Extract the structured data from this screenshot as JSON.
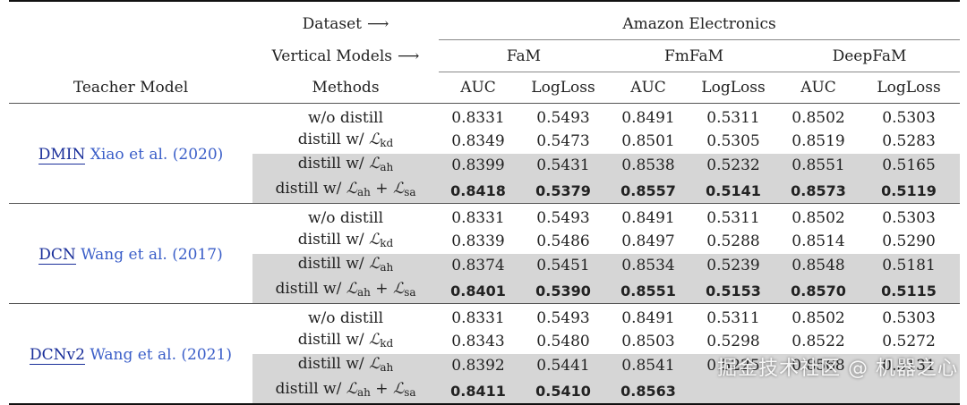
{
  "header": {
    "dataset_label": "Dataset",
    "dataset_arrow": "⟶",
    "dataset_value": "Amazon Electronics",
    "vertical_label": "Vertical Models",
    "vertical_arrow": "⟶",
    "models": [
      "FaM",
      "FmFaM",
      "DeepFaM"
    ],
    "teacher_label": "Teacher Model",
    "methods_label": "Methods",
    "metric_auc": "AUC",
    "metric_logloss": "LogLoss"
  },
  "methods": {
    "wo": "w/o distill",
    "kd_prefix": "distill w/ ",
    "kd_sub": "kd",
    "ah_prefix": "distill w/ ",
    "ah_sub": "ah",
    "sa_prefix": "distill w/ ",
    "sa_sub1": "ah",
    "sa_plus": " + ",
    "sa_sub2": "sa",
    "L": "ℒ"
  },
  "groups": [
    {
      "teacher": "DMIN",
      "citation": "Xiao et al. (2020)",
      "rows": [
        [
          "0.8331",
          "0.5493",
          "0.8491",
          "0.5311",
          "0.8502",
          "0.5303"
        ],
        [
          "0.8349",
          "0.5473",
          "0.8501",
          "0.5305",
          "0.8519",
          "0.5283"
        ],
        [
          "0.8399",
          "0.5431",
          "0.8538",
          "0.5232",
          "0.8551",
          "0.5165"
        ],
        [
          "0.8418",
          "0.5379",
          "0.8557",
          "0.5141",
          "0.8573",
          "0.5119"
        ]
      ]
    },
    {
      "teacher": "DCN",
      "citation": "Wang et al. (2017)",
      "rows": [
        [
          "0.8331",
          "0.5493",
          "0.8491",
          "0.5311",
          "0.8502",
          "0.5303"
        ],
        [
          "0.8339",
          "0.5486",
          "0.8497",
          "0.5288",
          "0.8514",
          "0.5290"
        ],
        [
          "0.8374",
          "0.5451",
          "0.8534",
          "0.5239",
          "0.8548",
          "0.5181"
        ],
        [
          "0.8401",
          "0.5390",
          "0.8551",
          "0.5153",
          "0.8570",
          "0.5115"
        ]
      ]
    },
    {
      "teacher": "DCNv2",
      "citation": "Wang et al. (2021)",
      "rows": [
        [
          "0.8331",
          "0.5493",
          "0.8491",
          "0.5311",
          "0.8502",
          "0.5303"
        ],
        [
          "0.8343",
          "0.5480",
          "0.8503",
          "0.5298",
          "0.8522",
          "0.5272"
        ],
        [
          "0.8392",
          "0.5441",
          "0.8541",
          "0.5225",
          "0.8568",
          "0.5131"
        ],
        [
          "0.8411",
          "0.5410",
          "0.8563",
          "",
          "",
          ""
        ]
      ]
    }
  ],
  "watermark": "掘金技术社区 @ 机器之心"
}
